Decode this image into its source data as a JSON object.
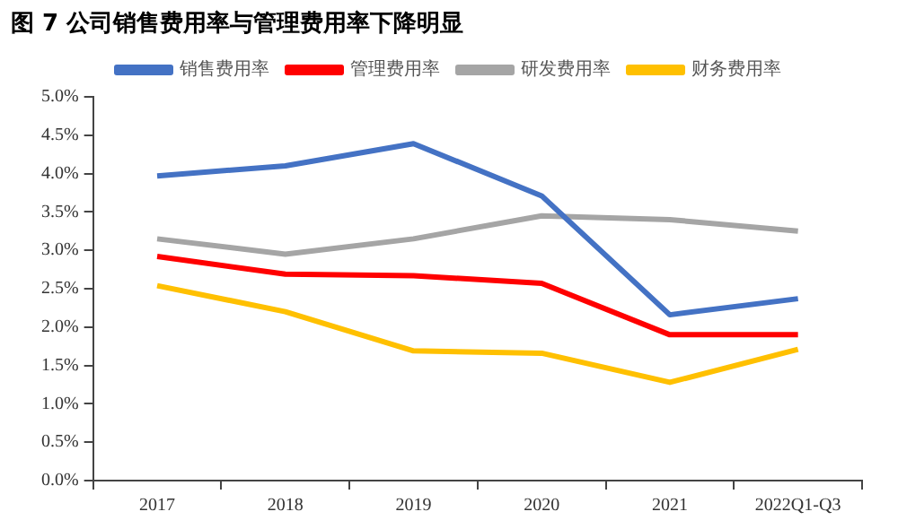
{
  "chart_data": {
    "type": "line",
    "title": "图 7 公司销售费用率与管理费用率下降明显",
    "categories": [
      "2017",
      "2018",
      "2019",
      "2020",
      "2021",
      "2022Q1-Q3"
    ],
    "series": [
      {
        "name": "销售费用率",
        "color": "#4472c4",
        "values": [
          3.97,
          4.1,
          4.39,
          3.71,
          2.16,
          2.37
        ]
      },
      {
        "name": "管理费用率",
        "color": "#ff0000",
        "values": [
          2.92,
          2.69,
          2.67,
          2.57,
          1.9,
          1.9
        ]
      },
      {
        "name": "研发费用率",
        "color": "#a5a5a5",
        "values": [
          3.15,
          2.95,
          3.15,
          3.45,
          3.4,
          3.25
        ]
      },
      {
        "name": "财务费用率",
        "color": "#ffc000",
        "values": [
          2.54,
          2.2,
          1.69,
          1.66,
          1.28,
          1.71
        ]
      }
    ],
    "ylim": [
      0,
      5
    ],
    "yticks": [
      {
        "value": 0,
        "label": "0.0%"
      },
      {
        "value": 0.5,
        "label": "0.5%"
      },
      {
        "value": 1,
        "label": "1.0%"
      },
      {
        "value": 1.5,
        "label": "1.5%"
      },
      {
        "value": 2,
        "label": "2.0%"
      },
      {
        "value": 2.5,
        "label": "2.5%"
      },
      {
        "value": 3,
        "label": "3.0%"
      },
      {
        "value": 3.5,
        "label": "3.5%"
      },
      {
        "value": 4,
        "label": "4.0%"
      },
      {
        "value": 4.5,
        "label": "4.5%"
      },
      {
        "value": 5,
        "label": "5.0%"
      }
    ],
    "legend": "top",
    "marker": "none",
    "line_style": "solid",
    "grid": false
  }
}
